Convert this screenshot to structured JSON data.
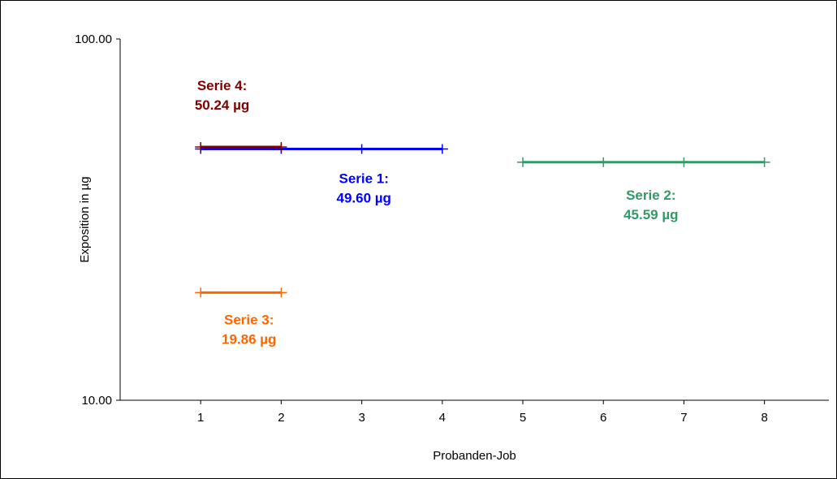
{
  "chart_data": {
    "type": "line",
    "xlabel": "Probanden-Job",
    "ylabel": "Exposition in µg",
    "xlim": [
      0,
      8.8
    ],
    "x_ticks": [
      "1",
      "2",
      "3",
      "4",
      "5",
      "6",
      "7",
      "8"
    ],
    "ylim": [
      10,
      100
    ],
    "y_scale": "log",
    "y_ticks": [
      "10.00",
      "100.00"
    ],
    "grid": false,
    "legend": "none",
    "series": [
      {
        "name": "Serie 1",
        "label": "Serie 1:",
        "value_label": "49.60 µg",
        "color": "#0000ff",
        "x": [
          1,
          2,
          3,
          4
        ],
        "y": [
          49.6,
          49.6,
          49.6,
          49.6
        ]
      },
      {
        "name": "Serie 2",
        "label": "Serie 2:",
        "value_label": "45.59 µg",
        "color": "#339966",
        "x": [
          5,
          6,
          7,
          8
        ],
        "y": [
          45.59,
          45.59,
          45.59,
          45.59
        ]
      },
      {
        "name": "Serie 3",
        "label": "Serie 3:",
        "value_label": "19.86 µg",
        "color": "#ff6600",
        "x": [
          1,
          2
        ],
        "y": [
          19.86,
          19.86
        ]
      },
      {
        "name": "Serie 4",
        "label": "Serie 4:",
        "value_label": "50.24 µg",
        "color": "#800000",
        "x": [
          1,
          2
        ],
        "y": [
          50.24,
          50.24
        ]
      }
    ]
  }
}
